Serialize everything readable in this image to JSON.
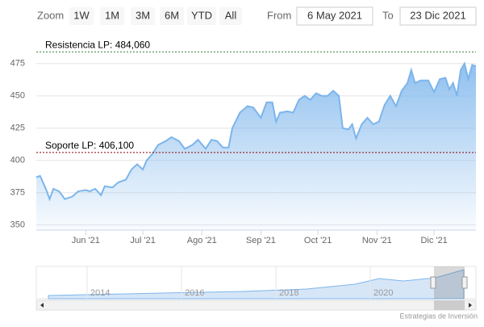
{
  "chart_data": {
    "type": "area",
    "range_selector": {
      "zoom_label": "Zoom",
      "buttons": [
        "1W",
        "1M",
        "3M",
        "6M",
        "YTD",
        "All"
      ],
      "from_label": "From",
      "from": "6 May 2021",
      "to_label": "To",
      "to": "23 Dic 2021"
    },
    "x": [
      "2021-05-06",
      "2021-05-08",
      "2021-05-11",
      "2021-05-13",
      "2021-05-15",
      "2021-05-18",
      "2021-05-21",
      "2021-05-25",
      "2021-05-28",
      "2021-06-01",
      "2021-06-03",
      "2021-06-06",
      "2021-06-09",
      "2021-06-11",
      "2021-06-15",
      "2021-06-18",
      "2021-06-22",
      "2021-06-25",
      "2021-06-28",
      "2021-07-01",
      "2021-07-03",
      "2021-07-06",
      "2021-07-09",
      "2021-07-13",
      "2021-07-16",
      "2021-07-20",
      "2021-07-23",
      "2021-07-27",
      "2021-07-30",
      "2021-08-03",
      "2021-08-06",
      "2021-08-09",
      "2021-08-12",
      "2021-08-15",
      "2021-08-17",
      "2021-08-21",
      "2021-08-25",
      "2021-08-28",
      "2021-09-01",
      "2021-09-04",
      "2021-09-07",
      "2021-09-09",
      "2021-09-11",
      "2021-09-15",
      "2021-09-18",
      "2021-09-21",
      "2021-09-24",
      "2021-09-27",
      "2021-09-30",
      "2021-10-03",
      "2021-10-06",
      "2021-10-09",
      "2021-10-12",
      "2021-10-14",
      "2021-10-17",
      "2021-10-19",
      "2021-10-21",
      "2021-10-24",
      "2021-10-27",
      "2021-10-30",
      "2021-11-02",
      "2021-11-05",
      "2021-11-08",
      "2021-11-11",
      "2021-11-14",
      "2021-11-17",
      "2021-11-19",
      "2021-11-21",
      "2021-11-24",
      "2021-11-28",
      "2021-12-01",
      "2021-12-04",
      "2021-12-07",
      "2021-12-09",
      "2021-12-11",
      "2021-12-13",
      "2021-12-15",
      "2021-12-17",
      "2021-12-19",
      "2021-12-21",
      "2021-12-23"
    ],
    "series": [
      {
        "color": "#7cb5ec",
        "values": [
          387,
          388,
          378,
          370,
          378,
          376,
          370,
          372,
          376,
          377,
          376,
          378,
          373,
          380,
          379,
          383,
          385,
          393,
          397,
          393,
          400,
          405,
          412,
          415,
          418,
          415,
          409,
          412,
          416,
          409,
          416,
          415,
          410,
          410,
          425,
          437,
          442,
          441,
          433,
          445,
          445,
          430,
          437,
          438,
          437,
          447,
          450,
          447,
          452,
          450,
          450,
          454,
          450,
          425,
          424,
          428,
          417,
          428,
          433,
          428,
          430,
          443,
          450,
          442,
          454,
          460,
          470,
          460,
          462,
          462,
          453,
          463,
          464,
          455,
          460,
          450,
          470,
          475,
          463,
          474,
          473
        ]
      }
    ],
    "xlim": [
      "2021-05-06",
      "2021-12-23"
    ],
    "xticks": [
      {
        "value": "2021-06-01",
        "label": "Jun '21"
      },
      {
        "value": "2021-07-01",
        "label": "Jul '21"
      },
      {
        "value": "2021-08-01",
        "label": "Ago '21"
      },
      {
        "value": "2021-09-01",
        "label": "Sep '21"
      },
      {
        "value": "2021-10-01",
        "label": "Oct '21"
      },
      {
        "value": "2021-11-01",
        "label": "Nov '21"
      },
      {
        "value": "2021-12-01",
        "label": "Dic '21"
      }
    ],
    "ylim": [
      346,
      488
    ],
    "yticks": [
      350,
      375,
      400,
      425,
      450,
      475
    ],
    "grid": true,
    "plot_lines": [
      {
        "value": 484.06,
        "label": "Resistencia LP: 484,060",
        "color": "#2e7d32"
      },
      {
        "value": 406.1,
        "label": "Soporte LP: 406,100",
        "color": "#8b0000"
      }
    ],
    "navigator_labels": [
      "2014",
      "2016",
      "2018",
      "2020"
    ],
    "credits": "Estrategias de Inversión"
  }
}
